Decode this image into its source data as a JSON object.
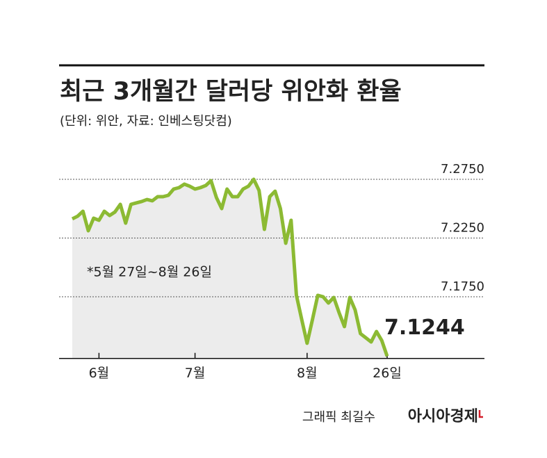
{
  "chart_data": {
    "type": "line",
    "title": "최근 3개월간 달러당 위안화 환율",
    "subtitle": "(단위: 위안, 자료: 인베스팅닷컴)",
    "note": "*5월 27일~8월 26일",
    "credit": "그래픽 최길수",
    "brand": "아시아경제",
    "color": "#8cba33",
    "grid": true,
    "ylim": [
      7.1225,
      7.285
    ],
    "yticks": [
      {
        "value": 7.275,
        "label": "7.2750"
      },
      {
        "value": 7.225,
        "label": "7.2250"
      },
      {
        "value": 7.175,
        "label": "7.1750"
      }
    ],
    "categories": [
      null,
      null,
      null,
      null,
      null,
      "6월",
      null,
      null,
      null,
      null,
      null,
      null,
      null,
      null,
      null,
      null,
      null,
      null,
      null,
      null,
      null,
      null,
      null,
      "7월",
      null,
      null,
      null,
      null,
      null,
      null,
      null,
      null,
      null,
      null,
      null,
      null,
      null,
      null,
      null,
      null,
      null,
      null,
      null,
      null,
      "8월",
      null,
      null,
      null,
      null,
      null,
      null,
      null,
      null,
      null,
      null,
      null,
      null,
      null,
      null,
      "26일"
    ],
    "values": [
      7.2413,
      7.2436,
      7.2478,
      7.2312,
      7.2419,
      7.2401,
      7.2478,
      7.2442,
      7.2472,
      7.2537,
      7.2377,
      7.2537,
      7.2549,
      7.2561,
      7.2578,
      7.2567,
      7.2602,
      7.2602,
      7.2614,
      7.2667,
      7.2679,
      7.2709,
      7.2691,
      7.2667,
      7.2679,
      7.2697,
      7.2738,
      7.2596,
      7.2501,
      7.2667,
      7.2602,
      7.2602,
      7.2667,
      7.2691,
      7.275,
      7.2655,
      7.2324,
      7.2602,
      7.2649,
      7.2501,
      7.2206,
      7.2401,
      7.1762,
      7.1555,
      7.1354,
      7.1555,
      7.1762,
      7.175,
      7.1697,
      7.1744,
      7.1614,
      7.1496,
      7.1744,
      7.1638,
      7.1436,
      7.1401,
      7.1365,
      7.1454,
      7.1377,
      7.1244
    ]
  }
}
